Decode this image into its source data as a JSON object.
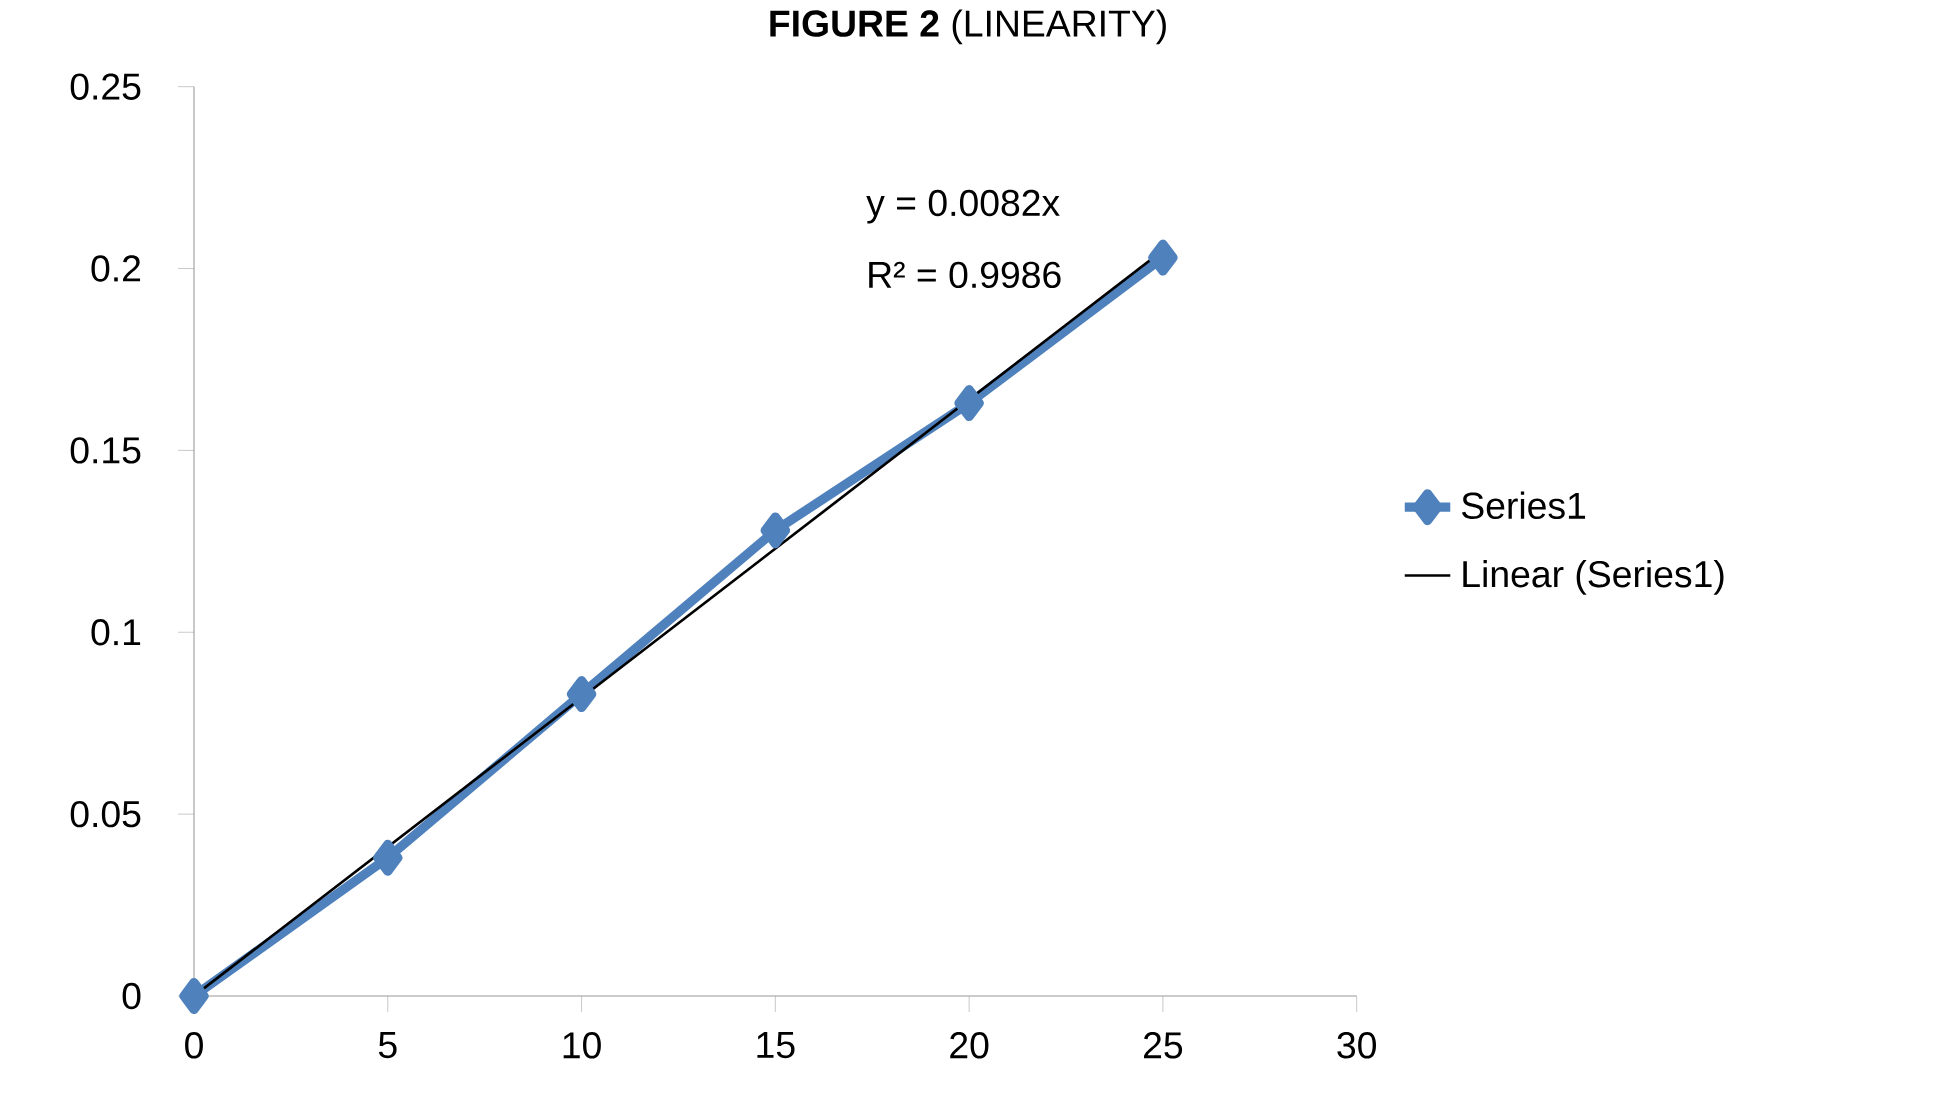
{
  "chart_data": {
    "type": "line",
    "title": "**FIGURE 2** (LINEARITY)",
    "xlim": [
      0,
      30
    ],
    "xticks": [
      0,
      5,
      10,
      15,
      20,
      25,
      30
    ],
    "ylim": [
      0,
      0.25
    ],
    "yticks": [
      0,
      0.05,
      0.1,
      0.15,
      0.2,
      0.25
    ],
    "series": [
      {
        "name": "Series1",
        "color": "#4f81bd",
        "marker": "diamond",
        "x": [
          0,
          5,
          10,
          15,
          20,
          25
        ],
        "values": [
          0,
          0.038,
          0.083,
          0.128,
          0.163,
          0.203
        ]
      },
      {
        "name": "Linear (Series1)",
        "color": "#000000",
        "type": "line",
        "marker": "none",
        "x": [
          0,
          25
        ],
        "values": [
          0,
          0.205
        ]
      }
    ],
    "annotations": [
      "y = 0.0082x",
      "R² = 0.9986"
    ],
    "legend": "right",
    "grid": false
  }
}
